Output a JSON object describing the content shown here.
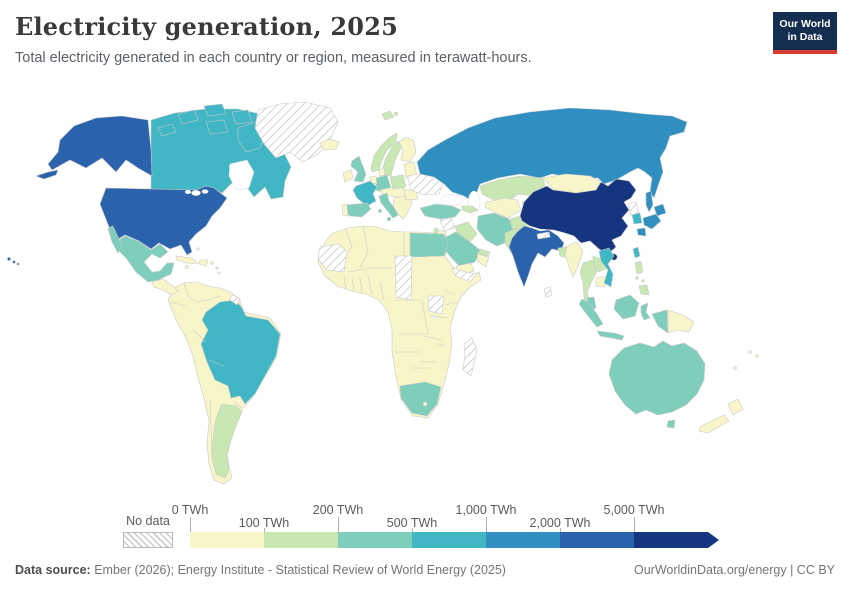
{
  "header": {
    "title": "Electricity generation, 2025",
    "subtitle": "Total electricity generated in each country or region, measured in terawatt-hours."
  },
  "logo": {
    "line1": "Our World",
    "line2": "in Data"
  },
  "legend": {
    "no_data_label": "No data",
    "bins": [
      {
        "label": "0 TWh",
        "row": "top",
        "color": "#F8F6C9"
      },
      {
        "label": "100 TWh",
        "row": "bottom",
        "color": "#C9E7B2"
      },
      {
        "label": "200 TWh",
        "row": "top",
        "color": "#7FCDBB"
      },
      {
        "label": "500 TWh",
        "row": "bottom",
        "color": "#41B6C4"
      },
      {
        "label": "1,000 TWh",
        "row": "top",
        "color": "#2E8FC0"
      },
      {
        "label": "2,000 TWh",
        "row": "bottom",
        "color": "#2A62AB"
      },
      {
        "label": "5,000 TWh",
        "row": "top",
        "color": "#16357F"
      }
    ]
  },
  "footer": {
    "source_label": "Data source:",
    "source_text": " Ember (2026); Energy Institute - Statistical Review of World Energy (2025)",
    "credit": "OurWorldinData.org/energy | CC BY"
  },
  "map": {
    "palette": {
      "0-100": "#F8F6C9",
      "100-200": "#C9E7B2",
      "200-500": "#7FCDBB",
      "500-1000": "#41B6C4",
      "1000-2000": "#2E8FC0",
      "2000-5000": "#2A62AB",
      "5000+": "#16357F"
    },
    "regions": [
      {
        "id": "usa",
        "name": "United States",
        "bucket": "2000-5000"
      },
      {
        "id": "canada",
        "name": "Canada",
        "bucket": "500-1000"
      },
      {
        "id": "greenland",
        "name": "Greenland",
        "bucket": "no_data"
      },
      {
        "id": "mexico",
        "name": "Mexico",
        "bucket": "200-500"
      },
      {
        "id": "central-america",
        "name": "Central America",
        "bucket": "0-100"
      },
      {
        "id": "caribbean",
        "name": "Caribbean",
        "bucket": "0-100"
      },
      {
        "id": "south-america-base",
        "name": "South America (other)",
        "bucket": "0-100"
      },
      {
        "id": "brazil",
        "name": "Brazil",
        "bucket": "500-1000"
      },
      {
        "id": "argentina",
        "name": "Argentina",
        "bucket": "100-200"
      },
      {
        "id": "french-guiana",
        "name": "French Guiana",
        "bucket": "no_data"
      },
      {
        "id": "iceland",
        "name": "Iceland",
        "bucket": "0-100"
      },
      {
        "id": "ireland",
        "name": "Ireland",
        "bucket": "0-100"
      },
      {
        "id": "uk",
        "name": "United Kingdom",
        "bucket": "200-500"
      },
      {
        "id": "norway",
        "name": "Norway",
        "bucket": "100-200"
      },
      {
        "id": "sweden",
        "name": "Sweden",
        "bucket": "100-200"
      },
      {
        "id": "finland",
        "name": "Finland",
        "bucket": "0-100"
      },
      {
        "id": "denmark",
        "name": "Denmark",
        "bucket": "0-100"
      },
      {
        "id": "baltics",
        "name": "Baltic states",
        "bucket": "0-100"
      },
      {
        "id": "germany",
        "name": "Germany",
        "bucket": "200-500"
      },
      {
        "id": "benelux",
        "name": "Benelux",
        "bucket": "0-100"
      },
      {
        "id": "france",
        "name": "France",
        "bucket": "500-1000"
      },
      {
        "id": "spain",
        "name": "Spain",
        "bucket": "200-500"
      },
      {
        "id": "portugal",
        "name": "Portugal",
        "bucket": "0-100"
      },
      {
        "id": "italy",
        "name": "Italy",
        "bucket": "200-500"
      },
      {
        "id": "central-europe",
        "name": "Central Europe",
        "bucket": "0-100"
      },
      {
        "id": "poland",
        "name": "Poland",
        "bucket": "100-200"
      },
      {
        "id": "balkans",
        "name": "Balkans",
        "bucket": "0-100"
      },
      {
        "id": "romania",
        "name": "Romania",
        "bucket": "0-100"
      },
      {
        "id": "ukraine-belarus",
        "name": "Ukraine / Belarus",
        "bucket": "no_data"
      },
      {
        "id": "russia",
        "name": "Russia",
        "bucket": "1000-2000"
      },
      {
        "id": "svalbard",
        "name": "Svalbard",
        "bucket": "100-200"
      },
      {
        "id": "kazakhstan",
        "name": "Kazakhstan",
        "bucket": "100-200"
      },
      {
        "id": "central-asia",
        "name": "Central Asia",
        "bucket": "0-100"
      },
      {
        "id": "caucasus",
        "name": "Caucasus",
        "bucket": "100-200"
      },
      {
        "id": "turkey",
        "name": "Turkey",
        "bucket": "200-500"
      },
      {
        "id": "syria",
        "name": "Syria",
        "bucket": "no_data"
      },
      {
        "id": "iraq",
        "name": "Iraq",
        "bucket": "100-200"
      },
      {
        "id": "israel",
        "name": "Israel",
        "bucket": "100-200"
      },
      {
        "id": "jordan",
        "name": "Jordan",
        "bucket": "0-100"
      },
      {
        "id": "iran",
        "name": "Iran",
        "bucket": "200-500"
      },
      {
        "id": "afghanistan",
        "name": "Afghanistan",
        "bucket": "100-200"
      },
      {
        "id": "pakistan",
        "name": "Pakistan",
        "bucket": "100-200"
      },
      {
        "id": "saudi-arabia",
        "name": "Saudi Arabia",
        "bucket": "200-500"
      },
      {
        "id": "yemen",
        "name": "Yemen",
        "bucket": "0-100"
      },
      {
        "id": "oman",
        "name": "Oman",
        "bucket": "0-100"
      },
      {
        "id": "uae",
        "name": "United Arab Emirates",
        "bucket": "100-200"
      },
      {
        "id": "africa-base",
        "name": "Africa (other)",
        "bucket": "0-100"
      },
      {
        "id": "egypt",
        "name": "Egypt",
        "bucket": "200-500"
      },
      {
        "id": "wsahara-mauritania",
        "name": "Western Sahara / Mauritania",
        "bucket": "no_data"
      },
      {
        "id": "chad",
        "name": "Chad",
        "bucket": "no_data"
      },
      {
        "id": "south-sudan",
        "name": "South Sudan",
        "bucket": "no_data"
      },
      {
        "id": "horn",
        "name": "Eritrea / Djibouti",
        "bucket": "no_data"
      },
      {
        "id": "south-africa",
        "name": "South Africa",
        "bucket": "200-500"
      },
      {
        "id": "madagascar",
        "name": "Madagascar",
        "bucket": "no_data"
      },
      {
        "id": "mongolia",
        "name": "Mongolia",
        "bucket": "0-100"
      },
      {
        "id": "china",
        "name": "China",
        "bucket": "5000+"
      },
      {
        "id": "north-korea",
        "name": "North Korea",
        "bucket": "no_data"
      },
      {
        "id": "south-korea",
        "name": "South Korea",
        "bucket": "500-1000"
      },
      {
        "id": "japan",
        "name": "Japan",
        "bucket": "1000-2000"
      },
      {
        "id": "taiwan",
        "name": "Taiwan",
        "bucket": "500-1000"
      },
      {
        "id": "india",
        "name": "India",
        "bucket": "2000-5000"
      },
      {
        "id": "nepal",
        "name": "Nepal",
        "bucket": "no_data"
      },
      {
        "id": "bangladesh",
        "name": "Bangladesh",
        "bucket": "100-200"
      },
      {
        "id": "sri-lanka",
        "name": "Sri Lanka",
        "bucket": "no_data"
      },
      {
        "id": "myanmar",
        "name": "Myanmar",
        "bucket": "0-100"
      },
      {
        "id": "thailand",
        "name": "Thailand",
        "bucket": "100-200"
      },
      {
        "id": "laos",
        "name": "Laos",
        "bucket": "100-200"
      },
      {
        "id": "cambodia",
        "name": "Cambodia",
        "bucket": "0-100"
      },
      {
        "id": "vietnam",
        "name": "Vietnam",
        "bucket": "500-1000"
      },
      {
        "id": "malaysia",
        "name": "Malaysia",
        "bucket": "200-500"
      },
      {
        "id": "indonesia",
        "name": "Indonesia",
        "bucket": "200-500"
      },
      {
        "id": "png",
        "name": "Papua New Guinea",
        "bucket": "0-100"
      },
      {
        "id": "philippines",
        "name": "Philippines",
        "bucket": "100-200"
      },
      {
        "id": "australia",
        "name": "Australia",
        "bucket": "200-500"
      },
      {
        "id": "new-zealand",
        "name": "New Zealand",
        "bucket": "0-100"
      },
      {
        "id": "pacific-islands",
        "name": "Pacific islands",
        "bucket": "0-100"
      }
    ]
  },
  "chart_data": {
    "type": "choropleth",
    "title": "Electricity generation, 2025",
    "subtitle": "Total electricity generated in each country or region, measured in terawatt-hours.",
    "unit": "TWh",
    "legend_position": "bottom",
    "legend_bins": [
      {
        "range": "0–100 TWh",
        "color": "#F8F6C9"
      },
      {
        "range": "100–200 TWh",
        "color": "#C9E7B2"
      },
      {
        "range": "200–500 TWh",
        "color": "#7FCDBB"
      },
      {
        "range": "500–1,000 TWh",
        "color": "#41B6C4"
      },
      {
        "range": "1,000–2,000 TWh",
        "color": "#2E8FC0"
      },
      {
        "range": "2,000–5,000 TWh",
        "color": "#2A62AB"
      },
      {
        "range": "5,000+ TWh",
        "color": "#16357F"
      }
    ],
    "readings": {
      "5000+": [
        "China"
      ],
      "2000-5000": [
        "United States",
        "India"
      ],
      "1000-2000": [
        "Russia",
        "Japan"
      ],
      "500-1000": [
        "Canada",
        "Brazil",
        "France",
        "South Korea",
        "Vietnam",
        "Taiwan"
      ],
      "200-500": [
        "Mexico",
        "United Kingdom",
        "Germany",
        "Spain",
        "Italy",
        "Turkey",
        "Egypt",
        "Saudi Arabia",
        "Iran",
        "South Africa",
        "Australia",
        "Indonesia",
        "Malaysia"
      ],
      "100-200": [
        "Argentina",
        "Norway",
        "Sweden",
        "Poland",
        "Kazakhstan",
        "Pakistan",
        "Bangladesh",
        "Thailand",
        "Philippines",
        "Iraq",
        "United Arab Emirates",
        "Afghanistan"
      ],
      "0-100": [
        "Most of Africa",
        "Most of Central and South America",
        "Mongolia",
        "Myanmar",
        "Cambodia",
        "New Zealand",
        "Papua New Guinea",
        "Finland",
        "Ireland",
        "Iceland",
        "Portugal",
        "Romania",
        "Balkans",
        "Central Asia",
        "Yemen",
        "Oman"
      ],
      "no_data": [
        "Greenland",
        "Ukraine",
        "Belarus",
        "Syria",
        "Chad",
        "South Sudan",
        "Mauritania",
        "Western Sahara",
        "Madagascar",
        "North Korea",
        "Nepal",
        "Sri Lanka",
        "French Guiana",
        "Eritrea/Djibouti"
      ]
    }
  }
}
